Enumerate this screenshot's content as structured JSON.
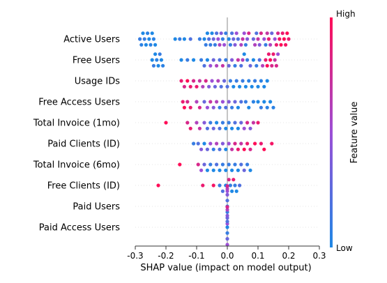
{
  "colors": {
    "low": "#1e88e5",
    "high": "#ff0d57",
    "zero_line": "#9e9e9e",
    "feature_guide": "#cccccc"
  },
  "chart_data": {
    "type": "scatter",
    "title": "",
    "xlabel": "SHAP value (impact on model output)",
    "xlim": [
      -0.3,
      0.3
    ],
    "xticks": [
      -0.3,
      -0.2,
      -0.1,
      0.0,
      0.1,
      0.2,
      0.3
    ],
    "xtick_labels": [
      "-0.3",
      "-0.2",
      "-0.1",
      "0.0",
      "0.1",
      "0.2",
      "0.3"
    ],
    "colorbar": {
      "label": "Feature value",
      "high": "High",
      "low": "Low"
    },
    "grid": false,
    "features": [
      {
        "name": "Active Users",
        "points": [
          [
            -0.285,
            0.1
          ],
          [
            -0.28,
            0.05
          ],
          [
            -0.275,
            0.0
          ],
          [
            -0.27,
            0.1
          ],
          [
            -0.265,
            0.0
          ],
          [
            -0.26,
            0.05
          ],
          [
            -0.255,
            0.0
          ],
          [
            -0.25,
            0.05
          ],
          [
            -0.245,
            0.0
          ],
          [
            -0.24,
            0.05
          ],
          [
            -0.235,
            0.0
          ],
          [
            -0.17,
            0.0
          ],
          [
            -0.155,
            0.1
          ],
          [
            -0.14,
            0.0
          ],
          [
            -0.12,
            0.2
          ],
          [
            -0.09,
            0.1
          ],
          [
            -0.075,
            0.0
          ],
          [
            -0.07,
            0.1
          ],
          [
            -0.065,
            0.0
          ],
          [
            -0.06,
            0.2
          ],
          [
            -0.055,
            0.1
          ],
          [
            -0.05,
            0.0
          ],
          [
            -0.045,
            0.3
          ],
          [
            -0.04,
            0.1
          ],
          [
            -0.035,
            0.2
          ],
          [
            -0.03,
            0.5
          ],
          [
            -0.025,
            0.6
          ],
          [
            -0.02,
            0.4
          ],
          [
            -0.015,
            0.1
          ],
          [
            -0.01,
            0.5
          ],
          [
            -0.005,
            0.1
          ],
          [
            0.005,
            0.0
          ],
          [
            0.01,
            0.1
          ],
          [
            0.015,
            0.2
          ],
          [
            0.02,
            0.3
          ],
          [
            0.025,
            0.4
          ],
          [
            0.03,
            0.5
          ],
          [
            0.035,
            0.2
          ],
          [
            0.045,
            0.6
          ],
          [
            0.05,
            0.7
          ],
          [
            0.055,
            0.5
          ],
          [
            0.06,
            0.1
          ],
          [
            0.065,
            0.4
          ],
          [
            0.07,
            0.8
          ],
          [
            0.085,
            0.3
          ],
          [
            0.09,
            0.6
          ],
          [
            0.095,
            0.2
          ],
          [
            0.1,
            0.7
          ],
          [
            0.105,
            0.4
          ],
          [
            0.11,
            0.8
          ],
          [
            0.12,
            0.5
          ],
          [
            0.125,
            0.1
          ],
          [
            0.13,
            0.7
          ],
          [
            0.135,
            0.9
          ],
          [
            0.14,
            0.6
          ],
          [
            0.145,
            0.3
          ],
          [
            0.155,
            0.5
          ],
          [
            0.16,
            0.9
          ],
          [
            0.165,
            0.8
          ],
          [
            0.17,
            0.95
          ],
          [
            0.175,
            1.0
          ],
          [
            0.18,
            0.9
          ],
          [
            0.185,
            1.0
          ],
          [
            0.19,
            0.95
          ],
          [
            0.195,
            1.0
          ],
          [
            0.2,
            0.9
          ]
        ]
      },
      {
        "name": "Free Users",
        "points": [
          [
            -0.245,
            0.0
          ],
          [
            -0.24,
            0.1
          ],
          [
            -0.235,
            0.0
          ],
          [
            -0.23,
            0.05
          ],
          [
            -0.225,
            0.0
          ],
          [
            -0.22,
            0.1
          ],
          [
            -0.215,
            0.0
          ],
          [
            -0.21,
            0.05
          ],
          [
            -0.15,
            0.0
          ],
          [
            -0.13,
            0.1
          ],
          [
            -0.11,
            0.0
          ],
          [
            -0.085,
            0.1
          ],
          [
            -0.075,
            0.2
          ],
          [
            -0.065,
            0.0
          ],
          [
            -0.055,
            0.5
          ],
          [
            -0.045,
            0.3
          ],
          [
            -0.035,
            0.6
          ],
          [
            -0.025,
            0.2
          ],
          [
            -0.015,
            0.7
          ],
          [
            -0.005,
            0.1
          ],
          [
            0.005,
            0.3
          ],
          [
            0.015,
            0.4
          ],
          [
            0.025,
            0.1
          ],
          [
            0.035,
            0.7
          ],
          [
            0.045,
            0.2
          ],
          [
            0.05,
            0.6
          ],
          [
            0.055,
            0.0
          ],
          [
            0.065,
            0.1
          ],
          [
            0.075,
            0.3
          ],
          [
            0.085,
            0.0
          ],
          [
            0.095,
            0.1
          ],
          [
            0.105,
            0.2
          ],
          [
            0.115,
            0.6
          ],
          [
            0.125,
            0.9
          ],
          [
            0.13,
            1.0
          ],
          [
            0.135,
            0.9
          ],
          [
            0.14,
            1.0
          ],
          [
            0.145,
            0.8
          ],
          [
            0.15,
            0.9
          ],
          [
            0.155,
            0.7
          ],
          [
            0.16,
            0.8
          ],
          [
            0.165,
            0.5
          ]
        ]
      },
      {
        "name": "Usage IDs",
        "points": [
          [
            -0.15,
            0.9
          ],
          [
            -0.14,
            0.8
          ],
          [
            -0.13,
            1.0
          ],
          [
            -0.12,
            0.9
          ],
          [
            -0.11,
            0.8
          ],
          [
            -0.1,
            0.9
          ],
          [
            -0.09,
            0.7
          ],
          [
            -0.08,
            0.6
          ],
          [
            -0.07,
            0.8
          ],
          [
            -0.06,
            0.4
          ],
          [
            -0.05,
            0.5
          ],
          [
            -0.04,
            0.3
          ],
          [
            -0.03,
            0.6
          ],
          [
            -0.02,
            0.2
          ],
          [
            -0.01,
            0.3
          ],
          [
            0.0,
            0.2
          ],
          [
            0.01,
            0.1
          ],
          [
            0.02,
            0.0
          ],
          [
            0.03,
            0.1
          ],
          [
            0.04,
            0.0
          ],
          [
            0.05,
            0.1
          ],
          [
            0.06,
            0.0
          ],
          [
            0.07,
            0.05
          ],
          [
            0.08,
            0.0
          ],
          [
            0.09,
            0.1
          ],
          [
            0.1,
            0.0
          ],
          [
            0.11,
            0.05
          ],
          [
            0.12,
            0.0
          ],
          [
            0.13,
            0.0
          ]
        ]
      },
      {
        "name": "Free Access Users",
        "points": [
          [
            -0.145,
            0.9
          ],
          [
            -0.14,
            1.0
          ],
          [
            -0.13,
            0.8
          ],
          [
            -0.12,
            0.9
          ],
          [
            -0.1,
            0.6
          ],
          [
            -0.09,
            0.8
          ],
          [
            -0.075,
            0.3
          ],
          [
            -0.065,
            0.5
          ],
          [
            -0.055,
            0.7
          ],
          [
            -0.045,
            0.4
          ],
          [
            -0.035,
            0.6
          ],
          [
            -0.025,
            0.1
          ],
          [
            -0.015,
            0.5
          ],
          [
            -0.005,
            0.2
          ],
          [
            0.005,
            0.4
          ],
          [
            0.015,
            0.1
          ],
          [
            0.025,
            0.3
          ],
          [
            0.035,
            0.0
          ],
          [
            0.045,
            0.2
          ],
          [
            0.06,
            0.1
          ],
          [
            0.07,
            0.0
          ],
          [
            0.085,
            0.05
          ],
          [
            0.1,
            0.0
          ],
          [
            0.11,
            0.1
          ],
          [
            0.12,
            0.0
          ],
          [
            0.13,
            0.05
          ],
          [
            0.14,
            0.0
          ],
          [
            0.15,
            0.05
          ]
        ]
      },
      {
        "name": "Total Invoice (1mo)",
        "points": [
          [
            -0.2,
            1.0
          ],
          [
            -0.13,
            0.8
          ],
          [
            -0.12,
            0.9
          ],
          [
            -0.1,
            0.6
          ],
          [
            -0.09,
            0.7
          ],
          [
            -0.075,
            0.4
          ],
          [
            -0.065,
            0.2
          ],
          [
            -0.055,
            0.1
          ],
          [
            -0.045,
            0.3
          ],
          [
            -0.035,
            0.0
          ],
          [
            -0.025,
            0.2
          ],
          [
            -0.015,
            0.1
          ],
          [
            -0.005,
            0.0
          ],
          [
            0.005,
            0.1
          ],
          [
            0.015,
            0.0
          ],
          [
            0.025,
            0.2
          ],
          [
            0.035,
            0.0
          ],
          [
            0.045,
            0.3
          ],
          [
            0.055,
            0.5
          ],
          [
            0.065,
            0.8
          ],
          [
            0.075,
            0.4
          ],
          [
            0.085,
            0.7
          ],
          [
            0.1,
            0.9
          ]
        ]
      },
      {
        "name": "Paid Clients (ID)",
        "points": [
          [
            -0.11,
            0.1
          ],
          [
            -0.095,
            0.2
          ],
          [
            -0.085,
            0.4
          ],
          [
            -0.075,
            0.0
          ],
          [
            -0.065,
            0.3
          ],
          [
            -0.055,
            0.5
          ],
          [
            -0.045,
            0.1
          ],
          [
            -0.035,
            0.6
          ],
          [
            -0.025,
            0.2
          ],
          [
            -0.015,
            0.4
          ],
          [
            -0.005,
            0.0
          ],
          [
            0.005,
            0.5
          ],
          [
            0.015,
            0.7
          ],
          [
            0.025,
            0.8
          ],
          [
            0.035,
            0.9
          ],
          [
            0.045,
            0.7
          ],
          [
            0.055,
            1.0
          ],
          [
            0.065,
            0.9
          ],
          [
            0.075,
            0.8
          ],
          [
            0.09,
            1.0
          ],
          [
            0.11,
            0.9
          ],
          [
            0.12,
            1.0
          ],
          [
            0.145,
            0.95
          ]
        ]
      },
      {
        "name": "Total Invoice (6mo)",
        "points": [
          [
            -0.155,
            1.0
          ],
          [
            -0.095,
            0.8
          ],
          [
            -0.085,
            0.5
          ],
          [
            -0.075,
            0.3
          ],
          [
            -0.065,
            0.0
          ],
          [
            -0.055,
            0.1
          ],
          [
            -0.045,
            0.0
          ],
          [
            -0.035,
            0.2
          ],
          [
            -0.025,
            0.0
          ],
          [
            -0.015,
            0.1
          ],
          [
            -0.005,
            0.0
          ],
          [
            0.005,
            0.1
          ],
          [
            0.015,
            0.0
          ],
          [
            0.025,
            0.1
          ],
          [
            0.035,
            0.0
          ],
          [
            0.045,
            0.2
          ],
          [
            0.055,
            0.3
          ],
          [
            0.065,
            0.1
          ],
          [
            0.075,
            0.0
          ]
        ]
      },
      {
        "name": "Free Clients (ID)",
        "points": [
          [
            -0.225,
            1.0
          ],
          [
            -0.08,
            0.9
          ],
          [
            -0.045,
            0.95
          ],
          [
            -0.025,
            0.1
          ],
          [
            -0.015,
            0.2
          ],
          [
            -0.005,
            0.0
          ],
          [
            0.0,
            0.5
          ],
          [
            0.005,
            0.8
          ],
          [
            0.01,
            0.1
          ],
          [
            0.015,
            0.0
          ],
          [
            0.02,
            0.9
          ],
          [
            0.025,
            0.1
          ],
          [
            0.03,
            0.0
          ],
          [
            0.04,
            0.2
          ]
        ]
      },
      {
        "name": "Paid Users",
        "points": [
          [
            0.0,
            0.0
          ],
          [
            0.0,
            0.1
          ],
          [
            0.0,
            0.2
          ],
          [
            0.0,
            0.3
          ],
          [
            0.0,
            0.4
          ],
          [
            0.0,
            0.5
          ],
          [
            0.0,
            0.6
          ],
          [
            0.0,
            0.7
          ],
          [
            0.0,
            0.8
          ]
        ]
      },
      {
        "name": "Paid Access Users",
        "points": [
          [
            0.0,
            0.0
          ],
          [
            0.0,
            0.1
          ],
          [
            0.0,
            0.2
          ],
          [
            0.0,
            0.3
          ],
          [
            0.0,
            0.4
          ],
          [
            0.0,
            0.5
          ],
          [
            0.0,
            0.6
          ],
          [
            0.0,
            0.7
          ],
          [
            0.0,
            0.8
          ]
        ]
      }
    ]
  }
}
